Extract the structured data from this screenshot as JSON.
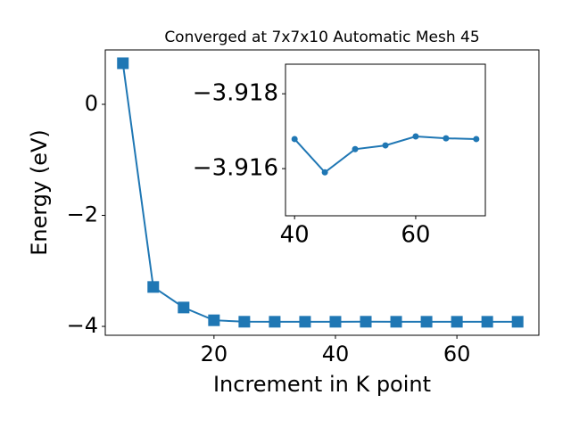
{
  "chart_data": [
    {
      "type": "line",
      "title": "Converged at 7x7x10 Automatic Mesh 45",
      "x_label": "Increment in K point",
      "y_label": "Energy (eV)",
      "x": [
        5,
        10,
        15,
        20,
        25,
        30,
        35,
        40,
        45,
        50,
        55,
        60,
        65,
        70
      ],
      "series": [
        {
          "color": "#1f77b4",
          "marker": "square",
          "values": [
            0.74,
            -3.29,
            -3.66,
            -3.89,
            -3.916,
            -3.9165,
            -3.9166,
            -3.91679,
            -3.9159,
            -3.91652,
            -3.91662,
            -3.91686,
            -3.91681,
            -3.91679
          ]
        }
      ],
      "xlim": [
        2.1,
        73.5
      ],
      "xticks": [
        20,
        40,
        60
      ],
      "ylim": [
        -4.16,
        0.98
      ],
      "yticks": [
        {
          "value": -4,
          "label": "−4"
        },
        {
          "value": -2,
          "label": "−2"
        },
        0
      ]
    },
    {
      "type": "line",
      "x": [
        40,
        45,
        50,
        55,
        60,
        65,
        70
      ],
      "series": [
        {
          "color": "#1f77b4",
          "marker": "circle",
          "values": [
            -3.91679,
            -3.9159,
            -3.91652,
            -3.91662,
            -3.91686,
            -3.91681,
            -3.91679
          ]
        }
      ],
      "xlim": [
        38.5,
        71.5
      ],
      "xticks": [
        40,
        60
      ],
      "ylim": [
        -3.91474,
        -3.91879
      ],
      "invert_y": true,
      "yticks": [
        {
          "value": -3.918,
          "label": "−3.918"
        },
        {
          "value": -3.916,
          "label": "−3.916"
        }
      ]
    }
  ]
}
